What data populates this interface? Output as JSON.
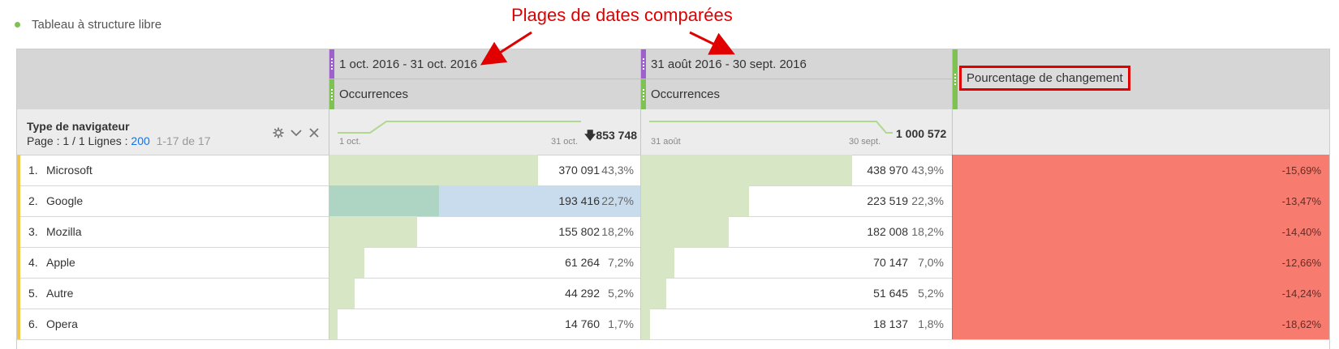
{
  "panel": {
    "title": "Tableau à structure libre"
  },
  "annotation": {
    "text": "Plages de dates comparées"
  },
  "columns": [
    {
      "date_range": "1 oct. 2016 - 31 oct. 2016",
      "metric": "Occurrences",
      "spark_start": "1 oct.",
      "spark_end": "31 oct.",
      "total": "853 748",
      "trend_icon": "down-arrow-icon"
    },
    {
      "date_range": "31 août 2016 - 30 sept. 2016",
      "metric": "Occurrences",
      "spark_start": "31 août",
      "spark_end": "30 sept.",
      "total": "1 000 572"
    }
  ],
  "change_column": {
    "label": "Pourcentage de changement"
  },
  "dimension": {
    "name": "Type de navigateur",
    "page_prefix": "Page : 1 / 1  Lignes : ",
    "rows_per_page": "200",
    "range": "1-17 de 17"
  },
  "rows": [
    {
      "rank": "1.",
      "name": "Microsoft",
      "v1": "370 091",
      "p1": "43,3%",
      "share1": 0.433,
      "v2": "438 970",
      "p2": "43,9%",
      "share2": 0.439,
      "change": "-15,69%"
    },
    {
      "rank": "2.",
      "name": "Google",
      "v1": "193 416",
      "p1": "22,7%",
      "share1": 0.227,
      "v2": "223 519",
      "p2": "22,3%",
      "share2": 0.223,
      "change": "-13,47%",
      "highlighted": true
    },
    {
      "rank": "3.",
      "name": "Mozilla",
      "v1": "155 802",
      "p1": "18,2%",
      "share1": 0.182,
      "v2": "182 008",
      "p2": "18,2%",
      "share2": 0.182,
      "change": "-14,40%"
    },
    {
      "rank": "4.",
      "name": "Apple",
      "v1": "61 264",
      "p1": "7,2%",
      "share1": 0.072,
      "v2": "70 147",
      "p2": "7,0%",
      "share2": 0.07,
      "change": "-12,66%"
    },
    {
      "rank": "5.",
      "name": "Autre",
      "v1": "44 292",
      "p1": "5,2%",
      "share1": 0.052,
      "v2": "51 645",
      "p2": "5,2%",
      "share2": 0.052,
      "change": "-14,24%"
    },
    {
      "rank": "6.",
      "name": "Opera",
      "v1": "14 760",
      "p1": "1,7%",
      "share1": 0.017,
      "v2": "18 137",
      "p2": "1,8%",
      "share2": 0.018,
      "change": "-18,62%"
    }
  ],
  "colors": {
    "accent_green": "#7ec352",
    "purple": "#a05fcf",
    "bar_fill": "#d7e7c6",
    "change_fill": "#f77c6f",
    "annotation_red": "#e00000",
    "row_marker": "#f3c54c"
  }
}
